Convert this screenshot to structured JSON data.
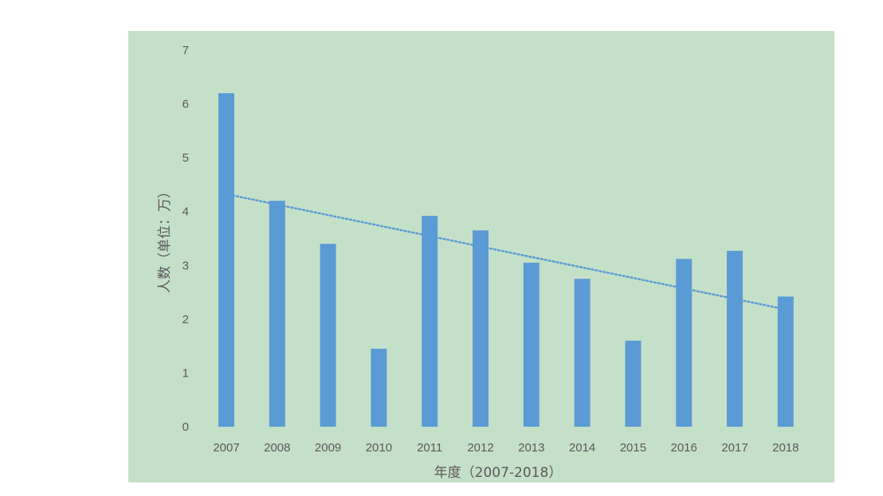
{
  "chart_data": {
    "type": "bar",
    "title": "",
    "xlabel": "年度（2007-2018）",
    "ylabel": "人数（单位：万）",
    "categories": [
      "2007",
      "2008",
      "2009",
      "2010",
      "2011",
      "2012",
      "2013",
      "2014",
      "2015",
      "2016",
      "2017",
      "2018"
    ],
    "values": [
      6.2,
      4.2,
      3.4,
      1.45,
      3.92,
      3.65,
      3.05,
      2.75,
      1.6,
      3.12,
      3.27,
      2.42
    ],
    "trendline": {
      "type": "linear",
      "style": "dotted",
      "start": 4.3,
      "end": 2.2
    },
    "ylim": [
      0,
      7
    ],
    "yticks": [
      0,
      1,
      2,
      3,
      4,
      5,
      6,
      7
    ],
    "grid": false,
    "legend": "none",
    "colors": {
      "bar": "#5b9bd5",
      "trend": "#5b9bd5",
      "plot_background": "#c5e0c8",
      "text": "#595959"
    }
  }
}
